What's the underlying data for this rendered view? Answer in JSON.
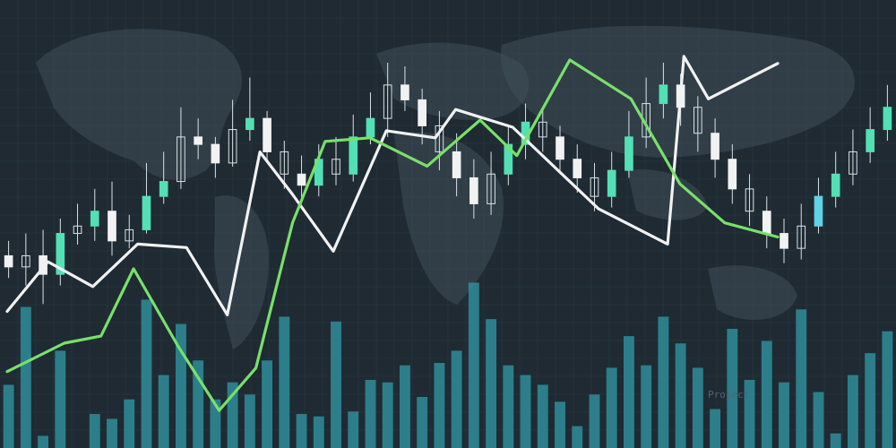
{
  "theme": {
    "background": "#1f2a33",
    "grid_color": "#3a4a55",
    "map_color": "#3f4e58",
    "bar_color": "#2f8d9a",
    "candle_up": "#52e0b4",
    "candle_down": "#f2f2f2",
    "candle_accent": "#5fd2e6",
    "line_white": "#f2f2f2",
    "line_green": "#79e06a"
  },
  "chart_data": {
    "type": "candlestick",
    "title": "",
    "xlabel": "",
    "ylabel": "",
    "grid": true,
    "legend": "none",
    "watermark": "Project",
    "x_count": 52,
    "volume_bars": [
      26,
      58,
      5,
      40,
      0,
      14,
      12,
      20,
      61,
      30,
      51,
      36,
      20,
      27,
      22,
      36,
      54,
      14,
      13,
      52,
      15,
      28,
      27,
      34,
      21,
      35,
      40,
      68,
      53,
      34,
      30,
      26,
      19,
      9,
      22,
      33,
      46,
      34,
      54,
      43,
      33,
      16,
      49,
      28,
      44,
      27,
      57,
      23,
      6,
      30,
      39,
      48
    ],
    "white_line": [
      [
        0.0,
        31
      ],
      [
        1.0,
        45
      ],
      [
        2.1,
        38
      ],
      [
        3.2,
        50
      ],
      [
        4.4,
        49
      ],
      [
        5.4,
        30
      ],
      [
        6.2,
        76
      ],
      [
        7.0,
        64
      ],
      [
        8.0,
        48
      ],
      [
        9.3,
        82
      ],
      [
        10.5,
        80
      ],
      [
        11.0,
        88
      ],
      [
        12.4,
        83
      ],
      [
        14.5,
        60
      ],
      [
        16.2,
        50
      ],
      [
        16.6,
        103
      ],
      [
        17.2,
        91
      ],
      [
        18.9,
        101
      ]
    ],
    "green_line": [
      [
        0.0,
        14
      ],
      [
        1.4,
        22
      ],
      [
        2.3,
        24
      ],
      [
        3.1,
        43
      ],
      [
        4.2,
        21
      ],
      [
        5.2,
        3
      ],
      [
        6.1,
        15
      ],
      [
        7.0,
        56
      ],
      [
        7.8,
        79
      ],
      [
        8.9,
        80
      ],
      [
        10.3,
        72
      ],
      [
        11.6,
        85
      ],
      [
        12.5,
        75
      ],
      [
        13.8,
        102
      ],
      [
        15.3,
        91
      ],
      [
        16.5,
        67
      ],
      [
        17.6,
        56
      ],
      [
        18.9,
        52
      ]
    ],
    "candles": [
      {
        "o": 78,
        "c": 75,
        "h": 82,
        "l": 72
      },
      {
        "o": 75,
        "c": 78,
        "h": 84,
        "l": 70
      },
      {
        "o": 78,
        "c": 73,
        "h": 85,
        "l": 65
      },
      {
        "o": 73,
        "c": 84,
        "h": 88,
        "l": 70
      },
      {
        "o": 84,
        "c": 86,
        "h": 92,
        "l": 81
      },
      {
        "o": 86,
        "c": 90,
        "h": 96,
        "l": 82
      },
      {
        "o": 90,
        "c": 82,
        "h": 98,
        "l": 78
      },
      {
        "o": 82,
        "c": 85,
        "h": 89,
        "l": 80
      },
      {
        "o": 85,
        "c": 94,
        "h": 103,
        "l": 84
      },
      {
        "o": 94,
        "c": 98,
        "h": 106,
        "l": 92
      },
      {
        "o": 98,
        "c": 110,
        "h": 118,
        "l": 96
      },
      {
        "o": 110,
        "c": 108,
        "h": 115,
        "l": 104
      },
      {
        "o": 108,
        "c": 103,
        "h": 110,
        "l": 99
      },
      {
        "o": 103,
        "c": 112,
        "h": 120,
        "l": 102
      },
      {
        "o": 112,
        "c": 115,
        "h": 126,
        "l": 109
      },
      {
        "o": 115,
        "c": 106,
        "h": 117,
        "l": 103
      },
      {
        "o": 106,
        "c": 100,
        "h": 109,
        "l": 96
      },
      {
        "o": 100,
        "c": 97,
        "h": 105,
        "l": 92
      },
      {
        "o": 97,
        "c": 104,
        "h": 108,
        "l": 94
      },
      {
        "o": 104,
        "c": 100,
        "h": 110,
        "l": 97
      },
      {
        "o": 100,
        "c": 110,
        "h": 116,
        "l": 98
      },
      {
        "o": 110,
        "c": 115,
        "h": 122,
        "l": 108
      },
      {
        "o": 115,
        "c": 124,
        "h": 130,
        "l": 110
      },
      {
        "o": 124,
        "c": 120,
        "h": 129,
        "l": 117
      },
      {
        "o": 120,
        "c": 113,
        "h": 123,
        "l": 108
      },
      {
        "o": 113,
        "c": 106,
        "h": 117,
        "l": 101
      },
      {
        "o": 106,
        "c": 99,
        "h": 111,
        "l": 94
      },
      {
        "o": 99,
        "c": 92,
        "h": 104,
        "l": 88
      },
      {
        "o": 92,
        "c": 100,
        "h": 106,
        "l": 89
      },
      {
        "o": 100,
        "c": 108,
        "h": 113,
        "l": 97
      },
      {
        "o": 108,
        "c": 114,
        "h": 119,
        "l": 104
      },
      {
        "o": 114,
        "c": 110,
        "h": 118,
        "l": 106
      },
      {
        "o": 110,
        "c": 104,
        "h": 113,
        "l": 100
      },
      {
        "o": 104,
        "c": 99,
        "h": 108,
        "l": 95
      },
      {
        "o": 99,
        "c": 94,
        "h": 103,
        "l": 90
      },
      {
        "o": 94,
        "c": 101,
        "h": 106,
        "l": 91
      },
      {
        "o": 101,
        "c": 110,
        "h": 117,
        "l": 99
      },
      {
        "o": 110,
        "c": 119,
        "h": 126,
        "l": 107
      },
      {
        "o": 119,
        "c": 124,
        "h": 130,
        "l": 115
      },
      {
        "o": 124,
        "c": 118,
        "h": 127,
        "l": 113
      },
      {
        "o": 118,
        "c": 111,
        "h": 121,
        "l": 106
      },
      {
        "o": 111,
        "c": 104,
        "h": 115,
        "l": 99
      },
      {
        "o": 104,
        "c": 96,
        "h": 108,
        "l": 92
      },
      {
        "o": 96,
        "c": 90,
        "h": 100,
        "l": 86
      },
      {
        "o": 90,
        "c": 84,
        "h": 94,
        "l": 80
      },
      {
        "o": 84,
        "c": 80,
        "h": 88,
        "l": 76
      },
      {
        "o": 80,
        "c": 86,
        "h": 92,
        "l": 77
      },
      {
        "o": 86,
        "c": 94,
        "h": 99,
        "l": 84
      },
      {
        "o": 94,
        "c": 100,
        "h": 106,
        "l": 91
      },
      {
        "o": 100,
        "c": 106,
        "h": 112,
        "l": 97
      },
      {
        "o": 106,
        "c": 112,
        "h": 118,
        "l": 103
      },
      {
        "o": 112,
        "c": 118,
        "h": 124,
        "l": 109
      }
    ]
  }
}
